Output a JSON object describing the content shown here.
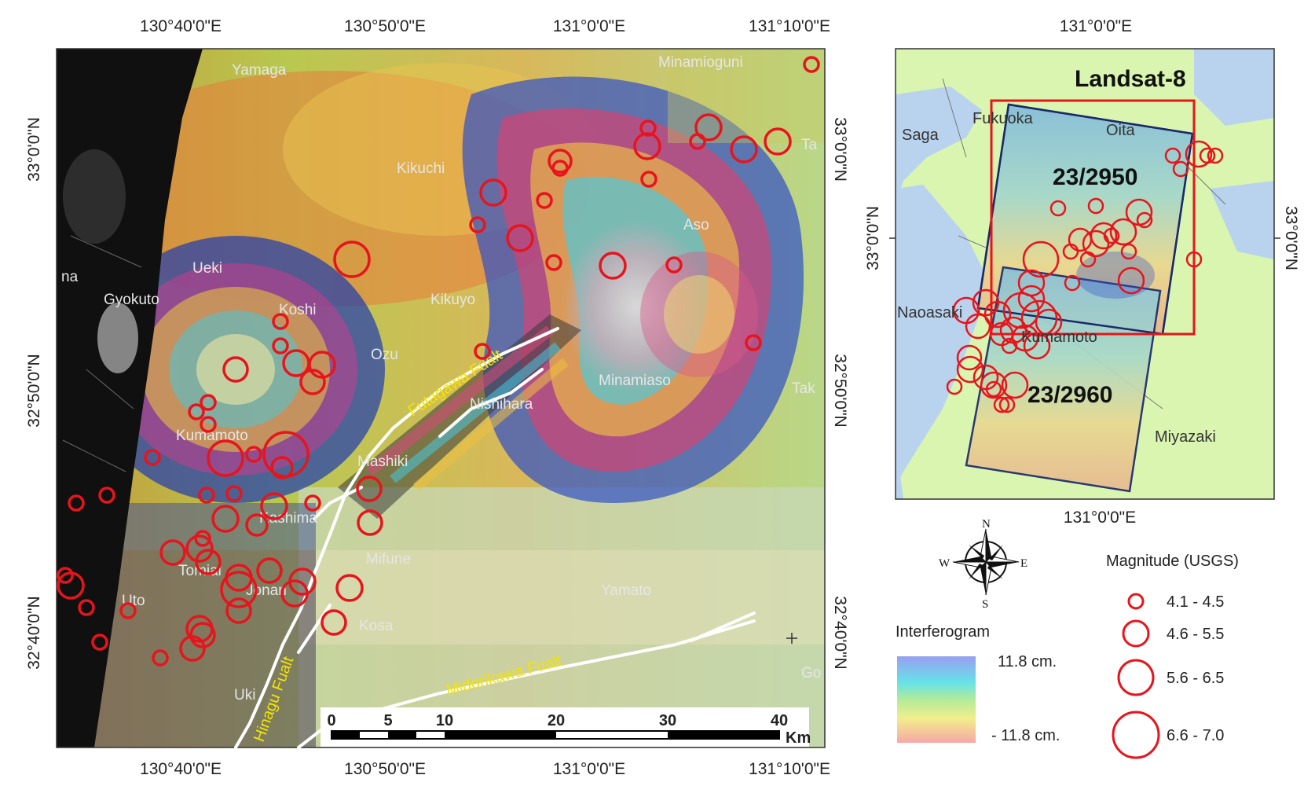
{
  "colors": {
    "quake": "#e8141c",
    "fault_line": "#ffffff",
    "fault_label": "#f4e400",
    "land": "#d9f5b0",
    "water": "#b9d3ee",
    "frame": "#1b2a6b"
  },
  "main_map": {
    "top_ticks": [
      "130°40'0\"E",
      "130°50'0\"E",
      "131°0'0\"E",
      "131°10'0\"E"
    ],
    "bottom_ticks": [
      "130°40'0\"E",
      "130°50'0\"E",
      "131°0'0\"E",
      "131°10'0\"E"
    ],
    "left_ticks": [
      "33°0'0\"N",
      "32°50'0\"N",
      "32°40'0\"N"
    ],
    "right_ticks": [
      "33°0'0\"N",
      "32°50'0\"N",
      "32°40'0\"N"
    ],
    "places": [
      "Yamaga",
      "Minamioguni",
      "Kikuchi",
      "Aso",
      "Ueki",
      "na",
      "Gyokuto",
      "Koshi",
      "Kikuyo",
      "Ozu",
      "Minamiaso",
      "Nishihara",
      "Kumamoto",
      "Mashiki",
      "Kashima",
      "Mifune",
      "Tomiai",
      "Jonan",
      "Uto",
      "Yamato",
      "Kosa",
      "Uki",
      "Go",
      "Tak",
      "Ta"
    ],
    "faults": [
      "Futagawa Fualt",
      "Hinagu Fualt",
      "Midorikawa Fualt"
    ],
    "scalebar": {
      "ticks": [
        "0",
        "5",
        "10",
        "20",
        "30",
        "40"
      ],
      "unit": "Km"
    }
  },
  "inset_map": {
    "top_tick": "131°0'0\"E",
    "bottom_tick": "131°0'0\"E",
    "left_tick": "33°0'0\"N",
    "right_tick": "33°0'0\"N",
    "title": "Landsat-8",
    "scenes": [
      "23/2950",
      "23/2960"
    ],
    "places": [
      "Saga",
      "Fukuoka",
      "Oita",
      "Naoasaki",
      "Kumamoto",
      "Miyazaki"
    ]
  },
  "north_arrow": {
    "n": "N",
    "s": "S",
    "e": "E",
    "w": "W"
  },
  "interferogram_legend": {
    "title": "Interferogram",
    "max": "11.8 cm.",
    "min": "- 11.8 cm."
  },
  "magnitude_legend": {
    "title": "Magnitude (USGS)",
    "classes": [
      "4.1 - 4.5",
      "4.6 - 5.5",
      "5.6 - 6.5",
      "6.6 - 7.0"
    ]
  }
}
